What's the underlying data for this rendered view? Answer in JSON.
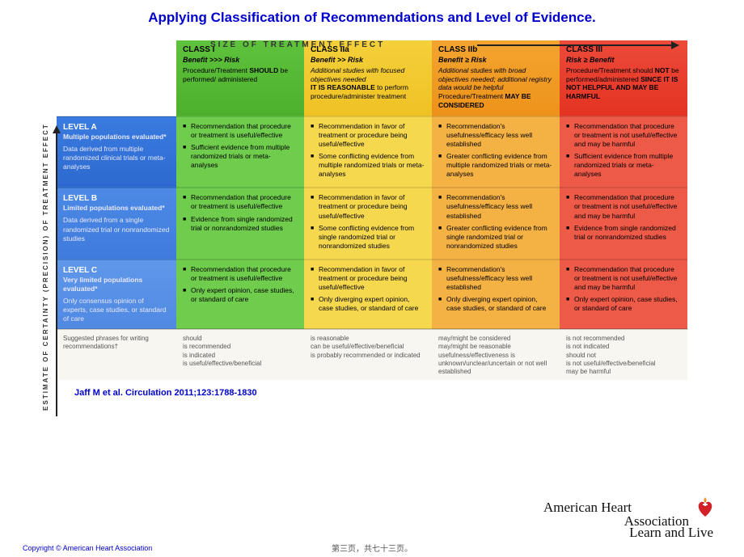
{
  "title": "Applying Classification of Recommendations and Level of Evidence.",
  "axis": {
    "top_label": "SIZE OF TREATMENT EFFECT",
    "left_label": "ESTIMATE OF CERTAINTY (PRECISION) OF TREATMENT EFFECT"
  },
  "colors": {
    "title": "#0000cc",
    "class1_header": "#4cb02c",
    "class2a_header": "#efc224",
    "class2b_header": "#ed921a",
    "class3_header": "#e43322",
    "class1_body": "#6fcc4c",
    "class2a_body": "#f6d84f",
    "class2b_body": "#f4b144",
    "class3_body": "#ee5a48",
    "level_a": "#2d6ad0",
    "level_b": "#3e7bdc",
    "level_c": "#5089e2",
    "footer_bg": "#f7f6f0",
    "slide_bg": "#ffffff"
  },
  "typography": {
    "title_fontsize": 17,
    "header_fontsize": 10,
    "body_fontsize": 8.5,
    "footer_fontsize": 8
  },
  "classes": [
    {
      "name": "CLASS I",
      "risk": "Benefit >>> Risk",
      "desc_html": "Procedure/Treatment <strong>SHOULD</strong> be performed/ administered"
    },
    {
      "name": "CLASS IIa",
      "risk": "Benefit >> Risk",
      "desc_html": "<em>Additional studies with focused objectives needed</em><br><strong>IT IS REASONABLE</strong> to perform procedure/administer treatment"
    },
    {
      "name": "CLASS IIb",
      "risk": "Benefit ≥ Risk",
      "desc_html": "<em>Additional studies with broad objectives needed; additional registry data would be helpful</em><br>Procedure/Treatment <strong>MAY BE CONSIDERED</strong>"
    },
    {
      "name": "CLASS III",
      "risk": "Risk ≥ Benefit",
      "desc_html": "Procedure/Treatment should <strong>NOT</strong> be performed/administered <strong>SINCE IT IS NOT HELPFUL AND MAY BE HARMFUL</strong>"
    }
  ],
  "levels": [
    {
      "name": "LEVEL A",
      "pop": "Multiple populations evaluated*",
      "desc": "Data derived from multiple randomized clinical trials or meta-analyses"
    },
    {
      "name": "LEVEL B",
      "pop": "Limited populations evaluated*",
      "desc": "Data derived from a single randomized trial or nonrandomized studies"
    },
    {
      "name": "LEVEL C",
      "pop": "Very limited populations evaluated*",
      "desc": "Only consensus opinion of experts, case studies, or standard of care"
    }
  ],
  "grid": [
    [
      [
        "Recommendation that procedure or treatment is useful/effective",
        "Sufficient evidence from multiple randomized trials or meta-analyses"
      ],
      [
        "Recommendation in favor of treatment or procedure being useful/effective",
        "Some conflicting evidence from multiple randomized trials or meta-analyses"
      ],
      [
        "Recommendation's usefulness/efficacy less well established",
        "Greater conflicting evidence from multiple randomized trials or meta-analyses"
      ],
      [
        "Recommendation that procedure or treatment is not useful/effective and may be harmful",
        "Sufficient evidence from multiple randomized trials or meta-analyses"
      ]
    ],
    [
      [
        "Recommendation that procedure or treatment is useful/effective",
        "Evidence from single randomized trial or nonrandomized studies"
      ],
      [
        "Recommendation in favor of treatment or procedure being useful/effective",
        "Some conflicting evidence from single randomized trial or nonrandomized studies"
      ],
      [
        "Recommendation's usefulness/efficacy less well established",
        "Greater conflicting evidence from single randomized trial or nonrandomized studies"
      ],
      [
        "Recommendation that procedure or treatment is not useful/effective and may be harmful",
        "Evidence from single randomized trial or nonrandomized studies"
      ]
    ],
    [
      [
        "Recommendation that procedure or treatment is useful/effective",
        "Only expert opinion, case studies, or standard of care"
      ],
      [
        "Recommendation in favor of treatment or procedure being useful/effective",
        "Only diverging expert opinion, case studies, or standard of care"
      ],
      [
        "Recommendation's usefulness/efficacy less well established",
        "Only diverging expert opinion, case studies, or standard of care"
      ],
      [
        "Recommendation that procedure or treatment is not useful/effective and may be harmful",
        "Only expert opinion, case studies, or standard of care"
      ]
    ]
  ],
  "suggested_phrases": {
    "label": "Suggested phrases for writing recommendations†",
    "cols": [
      [
        "should",
        "is recommended",
        "is indicated",
        "is useful/effective/beneficial"
      ],
      [
        "is reasonable",
        "can be useful/effective/beneficial",
        "is probably recommended or indicated"
      ],
      [
        "may/might be considered",
        "may/might be reasonable",
        "usefulness/effectiveness is unknown/unclear/uncertain or not well established"
      ],
      [
        "is not recommended",
        "is not indicated",
        "should not",
        "is not useful/effective/beneficial",
        "may be harmful"
      ]
    ]
  },
  "citation": "Jaff M et al. Circulation 2011;123:1788-1830",
  "copyright": "Copyright © American Heart Association",
  "page_counter": "第三页，共七十三页。",
  "logo": {
    "line1": "American Heart",
    "line2": "Association",
    "tagline": "Learn and Live",
    "heart_color": "#d22127",
    "flame_color": "#f28c1e"
  }
}
